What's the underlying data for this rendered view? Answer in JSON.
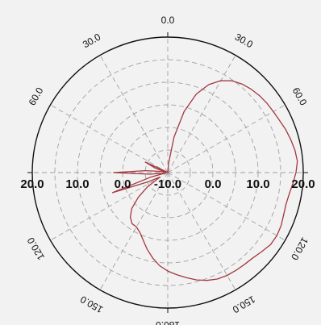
{
  "chart_data": {
    "type": "polar-line",
    "title": "",
    "angular_axis": {
      "direction": "clockwise",
      "zero_at": "top",
      "tick_step_deg": 30,
      "tick_labels": [
        {
          "angle": 0,
          "text": "0.0"
        },
        {
          "angle": 30,
          "text": "30.0"
        },
        {
          "angle": 60,
          "text": "60.0"
        },
        {
          "angle": 120,
          "text": "120.0"
        },
        {
          "angle": 150,
          "text": "150.0"
        },
        {
          "angle": 180,
          "text": "180.0"
        },
        {
          "angle": 210,
          "text": "150.0"
        },
        {
          "angle": 240,
          "text": "120.0"
        },
        {
          "angle": 300,
          "text": "60.0"
        },
        {
          "angle": 330,
          "text": "30.0"
        }
      ]
    },
    "radial_axis": {
      "range": [
        -10,
        20
      ],
      "rings": [
        -10,
        -5,
        0,
        5,
        10,
        15,
        20
      ],
      "grid": "dashed",
      "left_labels": [
        "20.0",
        "10.0",
        "0.0"
      ],
      "center_label": "-10.0",
      "right_labels": [
        "0.0",
        "10.0",
        "20.0"
      ]
    },
    "colors": {
      "series": "#a3383f",
      "grid": "#a0a0a0",
      "frame": "#111111",
      "background": "#f2f2f2"
    },
    "series": [
      {
        "theta": [
          0,
          5,
          10,
          15,
          20,
          25,
          30,
          35,
          40,
          45,
          50,
          55,
          60,
          65,
          70,
          75,
          80,
          85,
          90,
          95,
          100,
          105,
          110,
          115,
          120,
          125,
          130,
          135,
          140,
          145,
          150,
          155,
          160,
          165,
          170,
          175,
          180,
          185,
          190,
          195,
          200,
          205,
          210,
          215,
          220,
          225,
          230,
          235,
          240,
          245,
          250,
          255,
          260,
          265,
          270,
          275,
          280,
          285,
          290,
          295,
          300,
          305,
          310,
          315,
          320,
          325,
          330,
          335,
          340,
          345,
          350,
          355
        ],
        "r": [
          -10,
          -8,
          -2,
          4,
          8.5,
          11.5,
          13.5,
          14.8,
          15.6,
          16.1,
          16.5,
          16.8,
          17.0,
          17.3,
          17.8,
          18.2,
          18.6,
          18.8,
          18.4,
          17.8,
          17.3,
          17.1,
          17.3,
          17.7,
          17.9,
          17.8,
          17.2,
          16.7,
          16.5,
          16.4,
          16.3,
          16.0,
          15.4,
          14.6,
          13.6,
          12.7,
          11.8,
          10.7,
          9.2,
          7.6,
          5.9,
          4.6,
          3.9,
          3.8,
          2.9,
          1.3,
          -1.5,
          -4.5,
          -8.0,
          -5.0,
          3.0,
          -6.0,
          -9.5,
          -6.0,
          2.0,
          -5.0,
          -8.5,
          -9.5,
          -7.0,
          -4.5,
          -9.5,
          -9.8,
          -9.9,
          -10,
          -10,
          -10,
          -10,
          -10,
          -10,
          -10,
          -10,
          -10
        ]
      }
    ]
  }
}
